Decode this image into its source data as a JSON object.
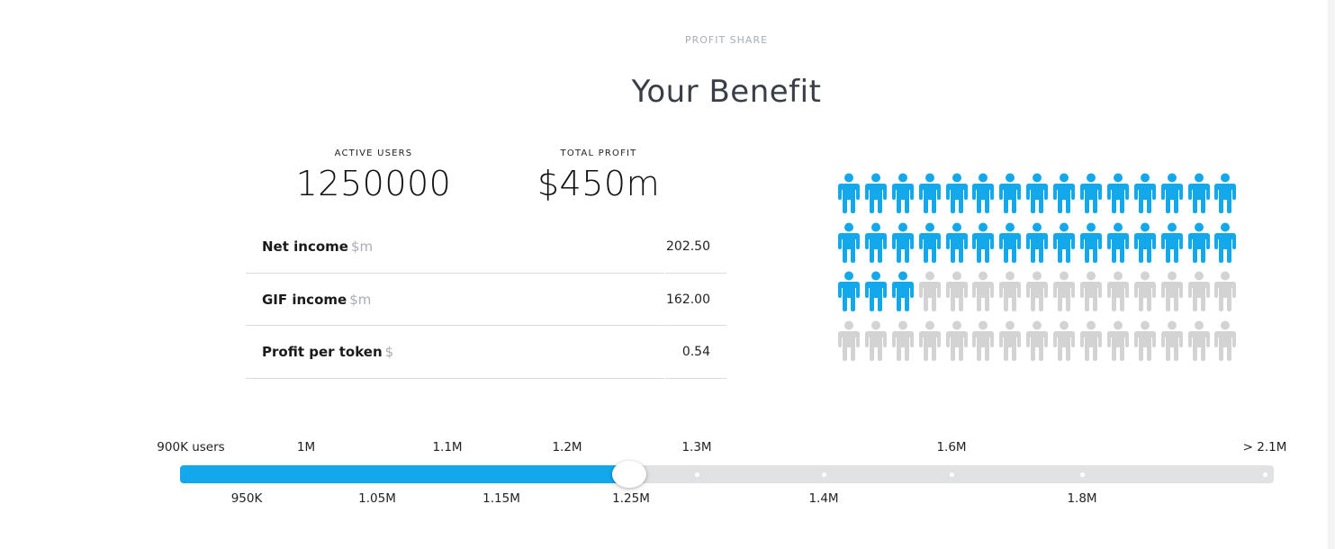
{
  "header": {
    "eyebrow": "PROFIT SHARE",
    "title": "Your Benefit"
  },
  "stats": {
    "active_users_label": "ACTIVE USERS",
    "active_users_value": "1250000",
    "total_profit_label": "TOTAL PROFIT",
    "total_profit_value": "$450m"
  },
  "table": {
    "rows": [
      {
        "name": "Net income",
        "unit": "$m",
        "value": "202.50"
      },
      {
        "name": "GIF income",
        "unit": "$m",
        "value": "162.00"
      },
      {
        "name": "Profit per token",
        "unit": "$",
        "value": "0.54"
      }
    ]
  },
  "people_chart": {
    "total": 60,
    "active": 33,
    "active_color": "#13a7ec",
    "inactive_color": "#d3d3d3"
  },
  "slider": {
    "top_labels": [
      "900K users",
      "1M",
      "1.1M",
      "1.2M",
      "1.3M",
      "1.6M",
      "> 2.1M"
    ],
    "bottom_labels": [
      "950K",
      "1.05M",
      "1.15M",
      "1.25M",
      "1.4M",
      "1.8M"
    ],
    "selected_label": "1.25M",
    "fill_fraction": 0.411,
    "fill_color": "#13a7ec",
    "track_color": "#e1e2e4"
  }
}
